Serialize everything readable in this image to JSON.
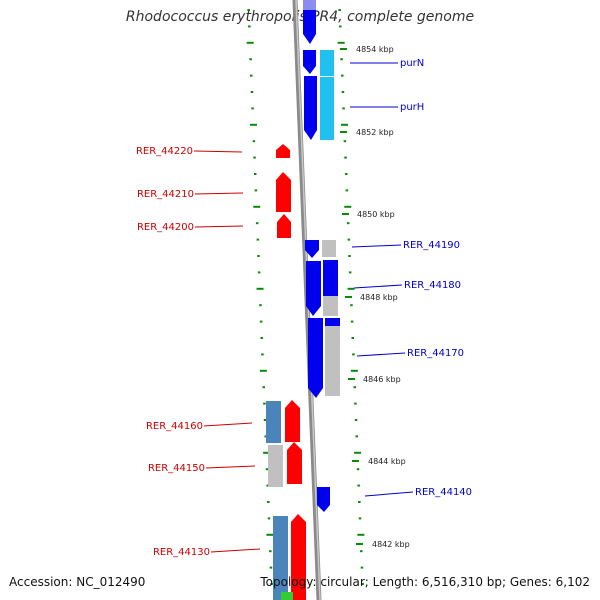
{
  "title": "Rhodococcus erythropolis PR4, complete genome",
  "accession": "Accession: NC_012490",
  "stats": "Topology: circular; Length: 6,516,310 bp; Genes: 6,102",
  "colors": {
    "forward_gene": "#0000ee",
    "reverse_gene": "#ff0000",
    "forward_label": "#0000cc",
    "reverse_label": "#cc0000",
    "cds_gray": "#c0c0c0",
    "cds_cyan": "#22c0ee",
    "cds_steelblue": "#4a84bb",
    "backbone": "#888888",
    "tick": "#0a8a0a"
  },
  "ruler": [
    {
      "label": "4854 kbp"
    },
    {
      "label": "4852 kbp"
    },
    {
      "label": "4850 kbp"
    },
    {
      "label": "4848 kbp"
    },
    {
      "label": "4846 kbp"
    },
    {
      "label": "4844 kbp"
    },
    {
      "label": "4842 kbp"
    }
  ],
  "genes_forward": [
    {
      "name": "purN"
    },
    {
      "name": "purH"
    },
    {
      "name": "RER_44190"
    },
    {
      "name": "RER_44180"
    },
    {
      "name": "RER_44170"
    },
    {
      "name": "RER_44140"
    }
  ],
  "genes_reverse": [
    {
      "name": "RER_44220"
    },
    {
      "name": "RER_44210"
    },
    {
      "name": "RER_44200"
    },
    {
      "name": "RER_44160"
    },
    {
      "name": "RER_44150"
    },
    {
      "name": "RER_44130"
    }
  ]
}
